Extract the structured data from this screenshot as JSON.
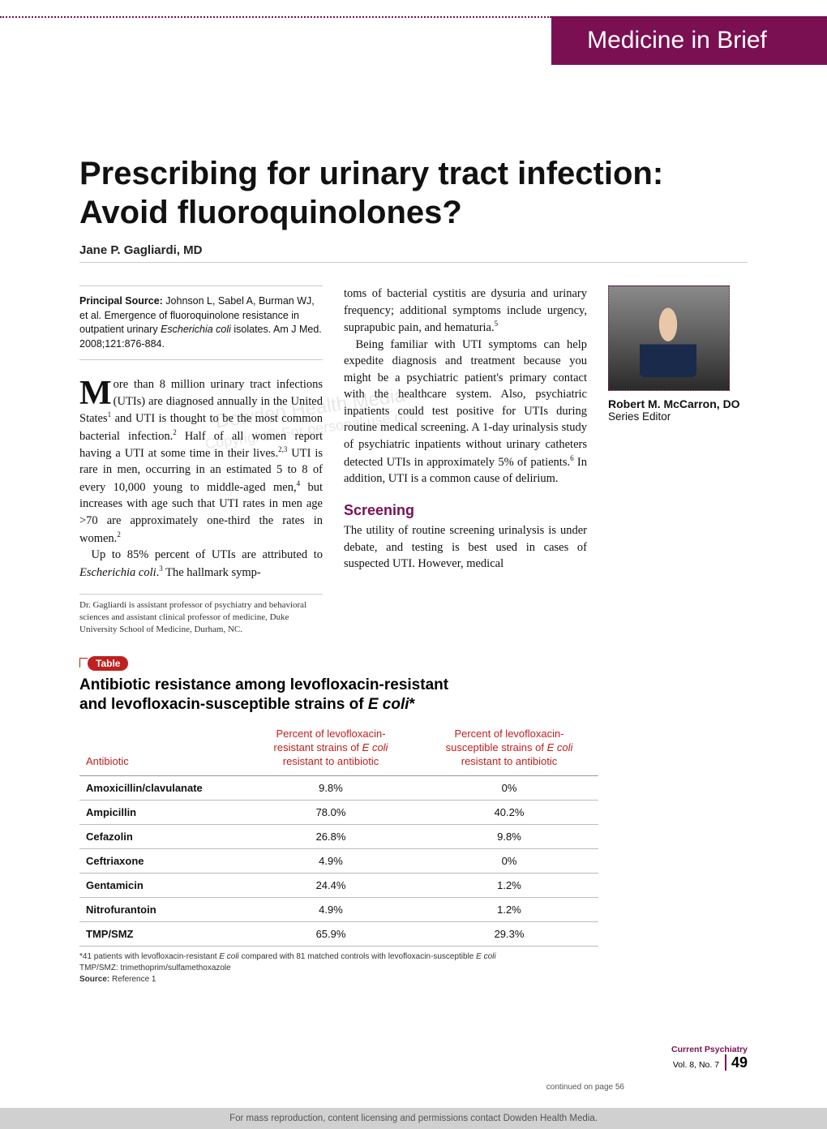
{
  "header": {
    "band": "Medicine in Brief"
  },
  "title_line1": "Prescribing for urinary tract infection:",
  "title_line2": "Avoid fluoroquinolones?",
  "byline": "Jane P. Gagliardi, MD",
  "source_label": "Principal Source:",
  "source_text": " Johnson L, Sabel A, Burman WJ, et al. Emergence of fluoroquinolone resistance in outpatient urinary ",
  "source_ital": "Escherichia coli",
  "source_text2": " isolates. Am J Med. 2008;121:876-884.",
  "para1_drop": "M",
  "para1a": "ore than 8 million urinary tract infections (UTIs) are diagnosed annually in the United States",
  "para1b": " and UTI is thought to be the most common bacterial infection.",
  "para1c": " Half of all women report having a UTI at some time in their lives.",
  "para1d": " UTI is rare in men, occurring in an estimated 5 to 8 of every 10,000 young to middle-aged men,",
  "para1e": " but increases with age such that UTI rates in men age >70 are approximately one-third the rates in women.",
  "para2a": "Up to 85% percent of UTIs are attributed to ",
  "para2_ital": "Escherichia coli",
  "para2b": ".",
  "para2c": " The hallmark symp-",
  "affiliation": "Dr. Gagliardi is assistant professor of psychiatry and behavioral sciences and assistant clinical professor of medicine, Duke University School of Medicine, Durham, NC.",
  "mid1": "toms of bacterial cystitis are dysuria and urinary frequency; additional symptoms include urgency, suprapubic pain, and hematuria.",
  "mid2": "Being familiar with UTI symptoms can help expedite diagnosis and treatment because you might be a psychiatric patient's primary contact with the healthcare system. Also, psychiatric inpatients could test positive for UTIs during routine medical screening. A 1-day urinalysis study of psychiatric inpatients without urinary catheters detected UTIs in approximately 5% of patients.",
  "mid2b": " In addition, UTI is a common cause of delirium.",
  "screening_head": "Screening",
  "mid3": "The utility of routine screening urinalysis is under debate, and testing is best used in cases of suspected UTI. However, medical",
  "editor_name": "Robert M. McCarron, DO",
  "editor_role": "Series Editor",
  "watermark1": "Dowden Health Media",
  "watermark2": "Copyright© For personal use only",
  "table": {
    "tab": "Table",
    "title1": "Antibiotic resistance among levofloxacin-resistant",
    "title2a": "and levofloxacin-susceptible strains of ",
    "title2_ital": "E coli",
    "title2b": "*",
    "head_col1": "Antibiotic",
    "head_col2a": "Percent of levofloxacin-",
    "head_col2b": "resistant strains of ",
    "head_col2_ital": "E coli",
    "head_col2c": "resistant to antibiotic",
    "head_col3a": "Percent of levofloxacin-",
    "head_col3b": "susceptible strains of ",
    "head_col3_ital": "E coli",
    "head_col3c": "resistant to antibiotic",
    "rows": [
      {
        "a": "Amoxicillin/clavulanate",
        "r": "9.8%",
        "s": "0%"
      },
      {
        "a": "Ampicillin",
        "r": "78.0%",
        "s": "40.2%"
      },
      {
        "a": "Cefazolin",
        "r": "26.8%",
        "s": "9.8%"
      },
      {
        "a": "Ceftriaxone",
        "r": "4.9%",
        "s": "0%"
      },
      {
        "a": "Gentamicin",
        "r": "24.4%",
        "s": "1.2%"
      },
      {
        "a": "Nitrofurantoin",
        "r": "4.9%",
        "s": "1.2%"
      },
      {
        "a": "TMP/SMZ",
        "r": "65.9%",
        "s": "29.3%"
      }
    ],
    "footnote1a": "*41 patients with levofloxacin-resistant ",
    "footnote1_ital1": "E coli",
    "footnote1b": " compared with 81 matched controls with levofloxacin-susceptible ",
    "footnote1_ital2": "E coli",
    "footnote2": "TMP/SMZ: trimethoprim/sulfamethoxazole",
    "footnote3a": "Source:",
    "footnote3b": " Reference 1"
  },
  "journal_name": "Current Psychiatry",
  "journal_issue": "Vol. 8, No. 7",
  "page_number": "49",
  "continued": "continued on page 56",
  "footer": "For mass reproduction, content licensing and permissions contact Dowden Health Media."
}
